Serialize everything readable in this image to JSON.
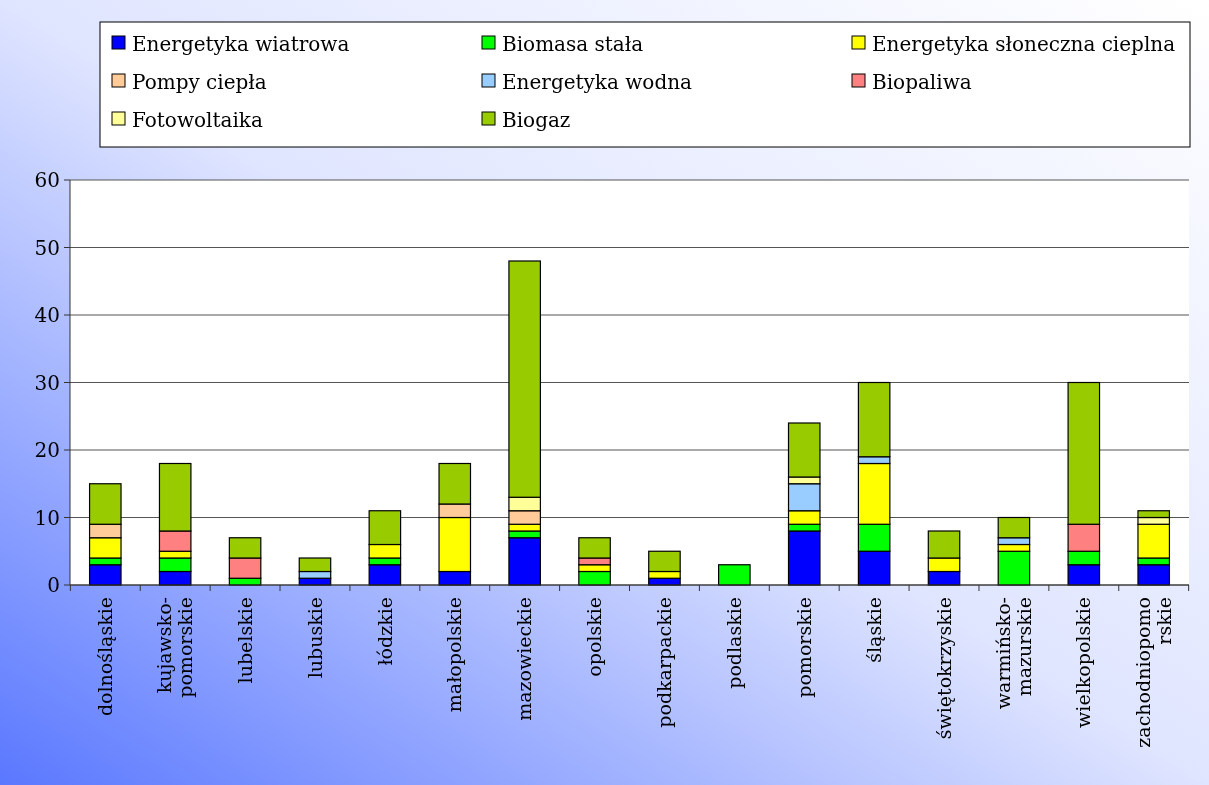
{
  "chart_data": {
    "type": "bar",
    "stacked": true,
    "categories": [
      "dolnośląskie",
      "kujawsko-\npomorskie",
      "lubelskie",
      "lubuskie",
      "łódzkie",
      "małopolskie",
      "mazowieckie",
      "opolskie",
      "podkarpackie",
      "podlaskie",
      "pomorskie",
      "śląskie",
      "świętokrzyskie",
      "warmińsko-\nmazurskie",
      "wielkopolskie",
      "zachodniopomo\nrskie"
    ],
    "series": [
      {
        "name": "Energetyka wiatrowa",
        "color": "#0000ff",
        "values": [
          3,
          2,
          0,
          1,
          3,
          2,
          7,
          0,
          1,
          0,
          8,
          5,
          2,
          0,
          3,
          3
        ]
      },
      {
        "name": "Biomasa stała",
        "color": "#00ff00",
        "values": [
          1,
          2,
          1,
          0,
          1,
          0,
          1,
          2,
          0,
          3,
          1,
          4,
          0,
          5,
          2,
          1
        ]
      },
      {
        "name": "Energetyka słoneczna cieplna",
        "color": "#ffff00",
        "values": [
          3,
          1,
          0,
          0,
          2,
          8,
          1,
          1,
          1,
          0,
          2,
          9,
          2,
          1,
          0,
          5
        ]
      },
      {
        "name": "Pompy ciepła",
        "color": "#ffcc99",
        "values": [
          2,
          0,
          0,
          0,
          0,
          2,
          2,
          0,
          0,
          0,
          0,
          0,
          0,
          0,
          0,
          0
        ]
      },
      {
        "name": "Energetyka wodna",
        "color": "#99ccff",
        "values": [
          0,
          0,
          0,
          1,
          0,
          0,
          0,
          0,
          0,
          0,
          4,
          1,
          0,
          1,
          0,
          0
        ]
      },
      {
        "name": "Biopaliwa",
        "color": "#ff8080",
        "values": [
          0,
          3,
          3,
          0,
          0,
          0,
          0,
          1,
          0,
          0,
          0,
          0,
          0,
          0,
          4,
          0
        ]
      },
      {
        "name": "Fotowoltaika",
        "color": "#ffff99",
        "values": [
          0,
          0,
          0,
          0,
          0,
          0,
          2,
          0,
          0,
          0,
          1,
          0,
          0,
          0,
          0,
          1
        ]
      },
      {
        "name": "Biogaz",
        "color": "#99cc00",
        "values": [
          6,
          10,
          3,
          2,
          5,
          6,
          35,
          3,
          3,
          0,
          8,
          11,
          4,
          3,
          21,
          1
        ]
      }
    ],
    "ylim": [
      0,
      60
    ],
    "yticks": [
      0,
      10,
      20,
      30,
      40,
      50,
      60
    ],
    "grid": "y",
    "legend": "top"
  }
}
